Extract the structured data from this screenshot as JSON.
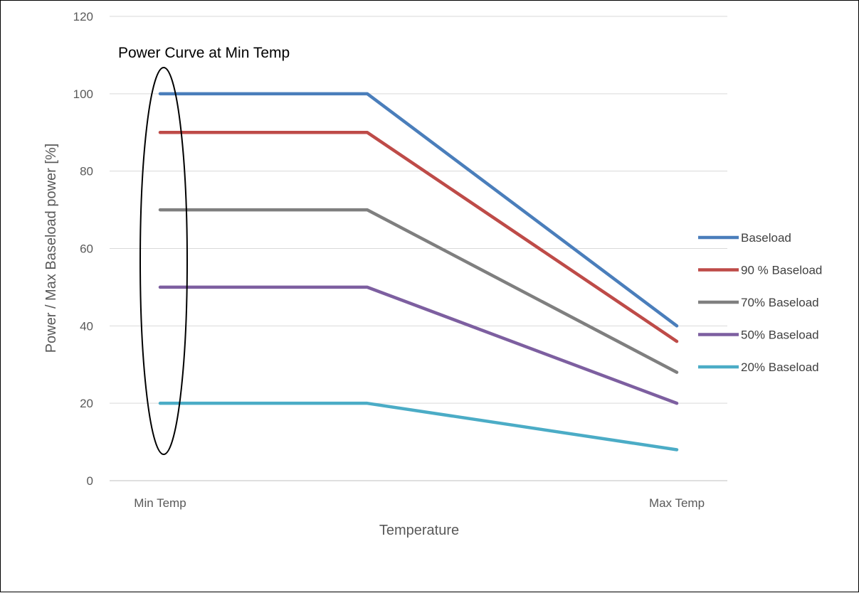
{
  "chart_data": {
    "type": "line",
    "title": "",
    "xlabel": "Temperature",
    "ylabel": "Power / Max Baseload power [%]",
    "x_tick_labels": [
      "Min Temp",
      "",
      "Max Temp"
    ],
    "ylim": [
      0,
      120
    ],
    "yticks": [
      0,
      20,
      40,
      60,
      80,
      100,
      120
    ],
    "grid": true,
    "legend_position": "right",
    "series": [
      {
        "name": "Baseload",
        "values": [
          100,
          100,
          40
        ],
        "color": "#4a7ebb"
      },
      {
        "name": "90 % Baseload",
        "values": [
          90,
          90,
          36
        ],
        "color": "#be4b48"
      },
      {
        "name": "70% Baseload",
        "values": [
          70,
          70,
          28
        ],
        "color": "#7f7f7f"
      },
      {
        "name": "50% Baseload",
        "values": [
          50,
          50,
          20
        ],
        "color": "#7d5fa0"
      },
      {
        "name": "20% Baseload",
        "values": [
          20,
          20,
          8
        ],
        "color": "#4bacc6"
      }
    ],
    "annotation": {
      "text": "Power Curve at Min Temp",
      "shape": "ellipse",
      "encloses_x_index": 0
    }
  }
}
